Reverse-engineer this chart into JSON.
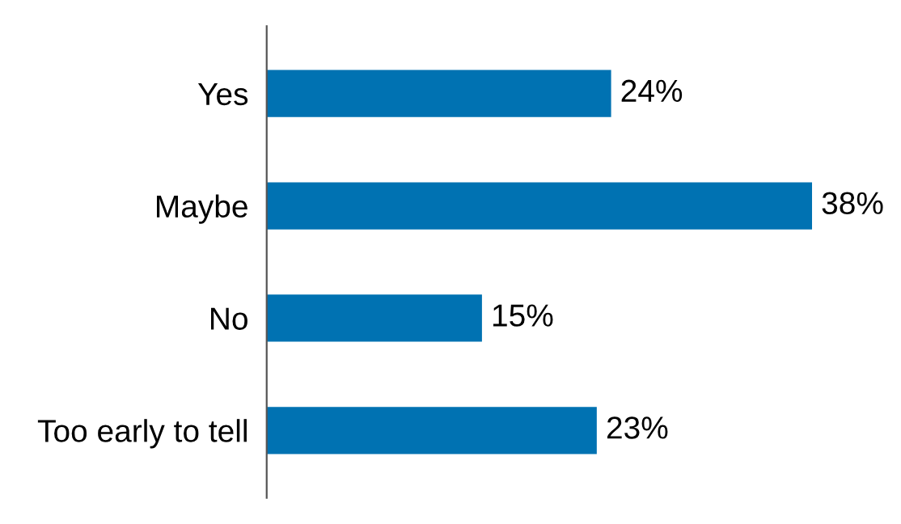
{
  "chart_data": {
    "type": "bar",
    "orientation": "horizontal",
    "categories": [
      "Yes",
      "Maybe",
      "No",
      "Too early to tell"
    ],
    "values": [
      24,
      38,
      15,
      23
    ],
    "value_labels": [
      "24%",
      "38%",
      "15%",
      "23%"
    ],
    "color": "#0072b2",
    "grid": false,
    "legend": false
  }
}
